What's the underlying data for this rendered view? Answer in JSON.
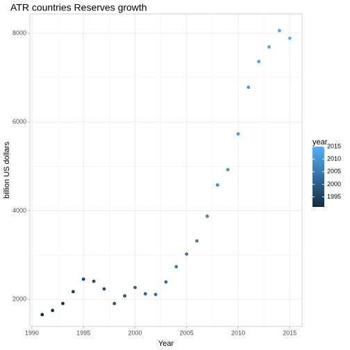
{
  "chart_data": {
    "type": "scatter",
    "title": "ATR countries Reserves growth",
    "x_label": "Year",
    "y_label": "billion US dollars",
    "x": [
      1991,
      1992,
      1993,
      1994,
      1995,
      1996,
      1997,
      1998,
      1999,
      2000,
      2001,
      2002,
      2003,
      2004,
      2005,
      2006,
      2007,
      2008,
      2009,
      2010,
      2011,
      2012,
      2013,
      2014,
      2015
    ],
    "values": [
      1655,
      1749,
      1906,
      2173,
      2455,
      2408,
      2235,
      1906,
      2078,
      2267,
      2125,
      2110,
      2392,
      2737,
      3020,
      3318,
      3875,
      4580,
      4925,
      5733,
      6784,
      7365,
      7694,
      8063,
      7890
    ],
    "xlim": [
      1989.8,
      2016.2
    ],
    "xticks": [
      1990,
      1995,
      2000,
      2005,
      2010,
      2015
    ],
    "ylim": [
      1390,
      8440
    ],
    "yticks": [
      2000,
      4000,
      6000,
      8000
    ],
    "grid": true,
    "minor_grid": true,
    "color_scale": {
      "title": "year",
      "low": "#132B43",
      "high": "#56B1F7",
      "ticks": [
        1995,
        2000,
        2005,
        2010,
        2015
      ]
    }
  }
}
